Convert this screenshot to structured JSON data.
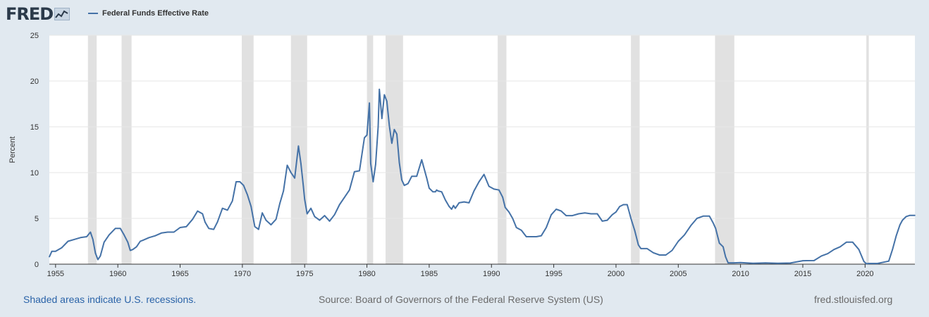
{
  "header": {
    "logo_text": "FRED",
    "legend_label": "Federal Funds Effective Rate"
  },
  "footer": {
    "recession_note": "Shaded areas indicate U.S. recessions.",
    "source": "Source: Board of Governors of the Federal Reserve System (US)",
    "site": "fred.stlouisfed.org"
  },
  "colors": {
    "line": "#4572a7",
    "recession": "#e1e1e1",
    "background": "#e1e9f0",
    "plot": "#ffffff"
  },
  "chart_data": {
    "type": "line",
    "title": "",
    "xlabel": "",
    "ylabel": "Percent",
    "xlim": [
      1954.5,
      2024.0
    ],
    "ylim": [
      0,
      25
    ],
    "yticks": [
      0,
      5,
      10,
      15,
      20,
      25
    ],
    "xticks": [
      1955,
      1960,
      1965,
      1970,
      1975,
      1980,
      1985,
      1990,
      1995,
      2000,
      2005,
      2010,
      2015,
      2020
    ],
    "grid": true,
    "legend": "top-left",
    "recessions": [
      [
        1957.6,
        1958.3
      ],
      [
        1960.3,
        1961.1
      ],
      [
        1969.95,
        1970.9
      ],
      [
        1973.9,
        1975.2
      ],
      [
        1980.0,
        1980.5
      ],
      [
        1981.5,
        1982.9
      ],
      [
        1990.5,
        1991.2
      ],
      [
        2001.2,
        2001.9
      ],
      [
        2007.95,
        2009.5
      ],
      [
        2020.1,
        2020.3
      ]
    ],
    "series": [
      {
        "name": "Federal Funds Effective Rate",
        "x": [
          1954.5,
          1954.7,
          1955.0,
          1955.5,
          1956.0,
          1956.5,
          1957.0,
          1957.5,
          1957.8,
          1958.0,
          1958.2,
          1958.4,
          1958.6,
          1958.9,
          1959.3,
          1959.8,
          1960.2,
          1960.5,
          1960.8,
          1961.0,
          1961.2,
          1961.5,
          1961.8,
          1962.0,
          1962.5,
          1963.0,
          1963.5,
          1964.0,
          1964.5,
          1965.0,
          1965.5,
          1966.0,
          1966.4,
          1966.8,
          1967.0,
          1967.3,
          1967.7,
          1968.0,
          1968.4,
          1968.8,
          1969.2,
          1969.5,
          1969.8,
          1970.1,
          1970.4,
          1970.7,
          1971.0,
          1971.3,
          1971.6,
          1971.9,
          1972.3,
          1972.7,
          1973.0,
          1973.3,
          1973.6,
          1973.9,
          1974.2,
          1974.5,
          1974.7,
          1974.9,
          1975.0,
          1975.2,
          1975.5,
          1975.8,
          1976.2,
          1976.6,
          1977.0,
          1977.4,
          1977.8,
          1978.2,
          1978.6,
          1979.0,
          1979.4,
          1979.8,
          1980.0,
          1980.2,
          1980.3,
          1980.5,
          1980.7,
          1980.9,
          1981.0,
          1981.2,
          1981.4,
          1981.6,
          1981.8,
          1982.0,
          1982.2,
          1982.4,
          1982.6,
          1982.8,
          1983.0,
          1983.3,
          1983.6,
          1984.0,
          1984.4,
          1984.8,
          1985.0,
          1985.3,
          1985.5,
          1985.6,
          1985.7,
          1986.0,
          1986.3,
          1986.6,
          1986.8,
          1986.95,
          1987.1,
          1987.4,
          1987.8,
          1988.2,
          1988.6,
          1989.0,
          1989.4,
          1989.8,
          1990.2,
          1990.6,
          1990.9,
          1991.1,
          1991.4,
          1991.7,
          1992.0,
          1992.4,
          1992.8,
          1993.2,
          1993.6,
          1994.0,
          1994.4,
          1994.8,
          1995.2,
          1995.6,
          1996.0,
          1996.5,
          1997.0,
          1997.5,
          1998.0,
          1998.5,
          1998.9,
          1999.3,
          1999.7,
          2000.0,
          2000.3,
          2000.6,
          2000.9,
          2001.0,
          2001.2,
          2001.5,
          2001.8,
          2002.0,
          2002.5,
          2003.0,
          2003.5,
          2004.0,
          2004.5,
          2005.0,
          2005.5,
          2006.0,
          2006.5,
          2007.0,
          2007.5,
          2007.8,
          2008.0,
          2008.3,
          2008.6,
          2008.8,
          2009.0,
          2009.5,
          2010.0,
          2011.0,
          2012.0,
          2013.0,
          2014.0,
          2015.0,
          2015.9,
          2016.5,
          2017.0,
          2017.5,
          2018.0,
          2018.5,
          2019.0,
          2019.5,
          2019.9,
          2020.1,
          2020.3,
          2021.0,
          2021.9,
          2022.2,
          2022.5,
          2022.8,
          2023.0,
          2023.3,
          2023.6,
          2024.0
        ],
        "values": [
          0.8,
          1.4,
          1.4,
          1.8,
          2.5,
          2.7,
          2.9,
          3.0,
          3.5,
          2.7,
          1.2,
          0.5,
          0.9,
          2.4,
          3.2,
          3.9,
          3.9,
          3.2,
          2.4,
          1.5,
          1.6,
          1.9,
          2.5,
          2.6,
          2.9,
          3.1,
          3.4,
          3.5,
          3.5,
          4.0,
          4.1,
          4.9,
          5.8,
          5.5,
          4.6,
          3.9,
          3.8,
          4.6,
          6.1,
          5.9,
          6.9,
          9.0,
          9.0,
          8.6,
          7.6,
          6.3,
          4.1,
          3.8,
          5.6,
          4.8,
          4.3,
          4.9,
          6.6,
          8.0,
          10.8,
          10.0,
          9.4,
          12.9,
          11.0,
          8.5,
          7.1,
          5.5,
          6.1,
          5.2,
          4.8,
          5.3,
          4.7,
          5.4,
          6.5,
          7.3,
          8.1,
          10.1,
          10.2,
          13.8,
          14.1,
          17.6,
          11.0,
          9.0,
          10.9,
          15.0,
          19.1,
          15.9,
          18.5,
          17.8,
          15.1,
          13.2,
          14.7,
          14.2,
          11.1,
          9.2,
          8.6,
          8.8,
          9.6,
          9.6,
          11.4,
          9.4,
          8.3,
          7.9,
          7.9,
          8.1,
          8.0,
          7.9,
          7.0,
          6.3,
          6.0,
          6.4,
          6.1,
          6.7,
          6.8,
          6.7,
          8.0,
          9.0,
          9.8,
          8.5,
          8.2,
          8.1,
          7.3,
          6.2,
          5.7,
          5.0,
          4.0,
          3.7,
          3.0,
          3.0,
          3.0,
          3.1,
          4.0,
          5.4,
          6.0,
          5.8,
          5.3,
          5.3,
          5.5,
          5.6,
          5.5,
          5.5,
          4.7,
          4.8,
          5.4,
          5.7,
          6.3,
          6.5,
          6.5,
          6.0,
          5.0,
          3.7,
          2.1,
          1.7,
          1.7,
          1.25,
          1.0,
          1.0,
          1.5,
          2.5,
          3.2,
          4.2,
          5.0,
          5.25,
          5.25,
          4.5,
          3.9,
          2.3,
          1.9,
          0.8,
          0.15,
          0.15,
          0.17,
          0.1,
          0.14,
          0.09,
          0.12,
          0.38,
          0.39,
          0.9,
          1.15,
          1.6,
          1.9,
          2.4,
          2.4,
          1.6,
          0.3,
          0.05,
          0.08,
          0.08,
          0.33,
          1.6,
          3.1,
          4.3,
          4.8,
          5.2,
          5.33,
          5.33
        ]
      }
    ]
  }
}
